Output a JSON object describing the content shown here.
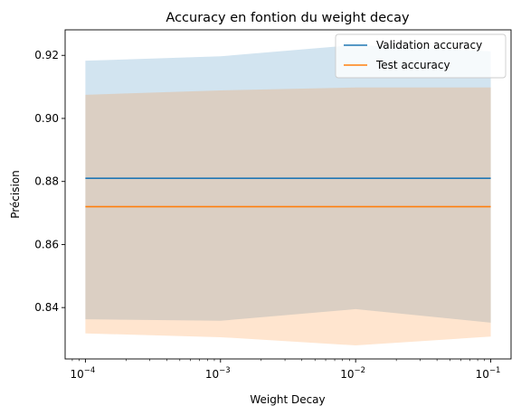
{
  "chart_data": {
    "type": "line",
    "title": "Accuracy en fontion du weight decay",
    "xlabel": "Weight Decay",
    "ylabel": "Précision",
    "x_scale": "log",
    "x": [
      0.0001,
      0.001,
      0.01,
      0.1
    ],
    "x_tick_labels": [
      {
        "base": "10",
        "exp": "−4"
      },
      {
        "base": "10",
        "exp": "−3"
      },
      {
        "base": "10",
        "exp": "−2"
      },
      {
        "base": "10",
        "exp": "−1"
      }
    ],
    "y_ticks": [
      "0.84",
      "0.86",
      "0.88",
      "0.90",
      "0.92"
    ],
    "xlim": [
      7.08e-05,
      0.1413
    ],
    "ylim": [
      0.8237,
      0.9281
    ],
    "grid": false,
    "legend_position": "upper right",
    "series": [
      {
        "name": "Validation accuracy",
        "color": "#1f77b4",
        "values": [
          0.881,
          0.881,
          0.881,
          0.881
        ],
        "band_upper": [
          0.9183,
          0.9197,
          0.9233,
          0.9213
        ],
        "band_lower": [
          0.8363,
          0.8358,
          0.8395,
          0.8352
        ]
      },
      {
        "name": "Test accuracy",
        "color": "#ff7f0e",
        "values": [
          0.872,
          0.872,
          0.872,
          0.872
        ],
        "band_upper": [
          0.9075,
          0.9089,
          0.9098,
          0.9098
        ],
        "band_lower": [
          0.8318,
          0.8306,
          0.828,
          0.8308
        ]
      }
    ]
  }
}
